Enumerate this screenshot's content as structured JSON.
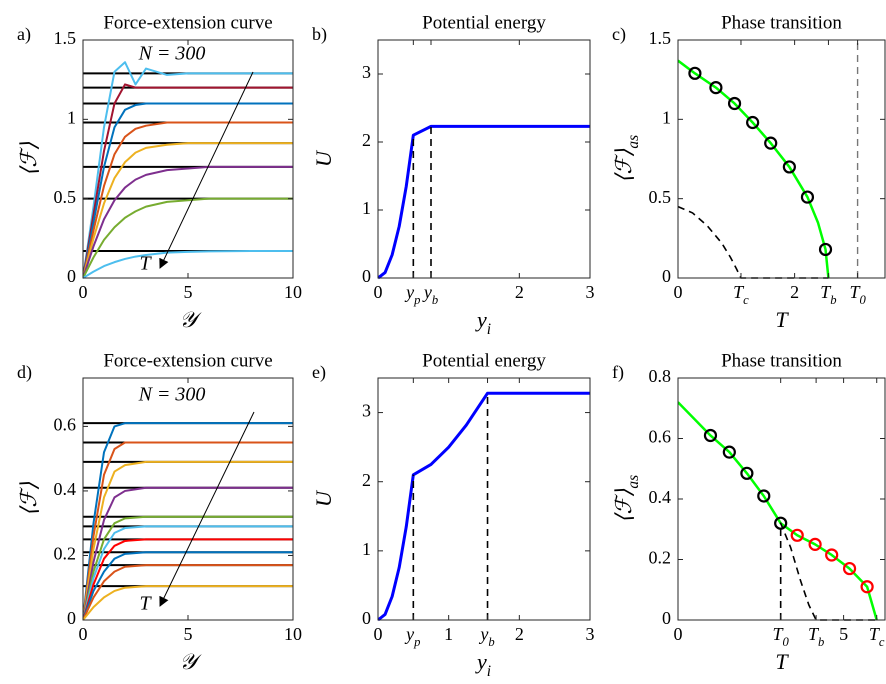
{
  "chart_data": [
    {
      "type": "line",
      "panel_label": "a)",
      "title": "Force-extension curve",
      "xlabel": "𝒴",
      "ylabel": "⟨ℱ⟩",
      "annotations": [
        "N = 300",
        "T"
      ],
      "xlim": [
        0,
        10
      ],
      "ylim": [
        0,
        1.5
      ],
      "xticks": [
        0,
        5,
        10
      ],
      "yticks": [
        0,
        0.5,
        1,
        1.5
      ],
      "hlines": [
        1.29,
        1.2,
        1.1,
        0.98,
        0.85,
        0.7,
        0.5,
        0.17
      ],
      "hline_color": "#000000",
      "x": [
        0,
        0.5,
        1,
        1.5,
        2,
        2.5,
        3,
        4,
        5,
        6,
        8,
        10
      ],
      "series": [
        {
          "color": "#4dbeee",
          "values": [
            0,
            0.45,
            0.95,
            1.3,
            1.36,
            1.22,
            1.32,
            1.28,
            1.29,
            1.29,
            1.29,
            1.29
          ]
        },
        {
          "color": "#a2142f",
          "values": [
            0,
            0.4,
            0.8,
            1.1,
            1.22,
            1.2,
            1.2,
            1.2,
            1.2,
            1.2,
            1.2,
            1.2
          ]
        },
        {
          "color": "#0072bd",
          "values": [
            0,
            0.35,
            0.7,
            0.95,
            1.06,
            1.09,
            1.1,
            1.1,
            1.1,
            1.1,
            1.1,
            1.1
          ]
        },
        {
          "color": "#d95319",
          "values": [
            0,
            0.3,
            0.58,
            0.78,
            0.89,
            0.94,
            0.96,
            0.98,
            0.98,
            0.98,
            0.98,
            0.98
          ]
        },
        {
          "color": "#edb120",
          "values": [
            0,
            0.25,
            0.47,
            0.63,
            0.73,
            0.79,
            0.82,
            0.84,
            0.85,
            0.85,
            0.85,
            0.85
          ]
        },
        {
          "color": "#7e2f8e",
          "values": [
            0,
            0.2,
            0.37,
            0.49,
            0.57,
            0.62,
            0.65,
            0.68,
            0.69,
            0.7,
            0.7,
            0.7
          ]
        },
        {
          "color": "#77ac30",
          "values": [
            0,
            0.13,
            0.24,
            0.32,
            0.38,
            0.42,
            0.45,
            0.48,
            0.49,
            0.5,
            0.5,
            0.5
          ]
        },
        {
          "color": "#4dbeee",
          "values": [
            0,
            0.04,
            0.075,
            0.1,
            0.12,
            0.135,
            0.145,
            0.16,
            0.165,
            0.168,
            0.17,
            0.17
          ]
        }
      ]
    },
    {
      "type": "line",
      "panel_label": "b)",
      "title": "Potential energy",
      "xlabel": "y_i",
      "ylabel": "U",
      "xlim": [
        0,
        3
      ],
      "ylim": [
        0,
        3.5
      ],
      "xticks": [
        0,
        {
          "value": 0.5,
          "label": "y_p"
        },
        {
          "value": 0.75,
          "label": "y_b"
        },
        2,
        3
      ],
      "yticks": [
        0,
        1,
        2,
        3
      ],
      "series": [
        {
          "color": "#0000ff",
          "width": 3,
          "x": [
            0,
            0.1,
            0.2,
            0.3,
            0.4,
            0.5,
            0.75,
            3
          ],
          "values": [
            0,
            0.08,
            0.34,
            0.76,
            1.35,
            2.1,
            2.23,
            2.23
          ]
        },
        {
          "color": "#000000",
          "dash": true,
          "x": [
            0.5,
            0.5
          ],
          "values": [
            0,
            2.1
          ]
        },
        {
          "color": "#000000",
          "dash": true,
          "x": [
            0.75,
            0.75
          ],
          "values": [
            0,
            2.23
          ]
        }
      ]
    },
    {
      "type": "line",
      "panel_label": "c)",
      "title": "Phase transition",
      "xlabel": "T",
      "ylabel": "⟨ℱ⟩_as",
      "xlim": [
        0,
        3.55
      ],
      "ylim": [
        0,
        1.5
      ],
      "xticks": [
        0,
        {
          "value": 1.08,
          "label": "T_c"
        },
        2,
        {
          "value": 2.58,
          "label": "T_b"
        },
        {
          "value": 3.08,
          "label": "T_0"
        }
      ],
      "yticks": [
        0,
        0.5,
        1,
        1.5
      ],
      "series": [
        {
          "color": "#00ff00",
          "width": 2.5,
          "x": [
            0,
            0.29,
            0.65,
            0.97,
            1.28,
            1.59,
            1.91,
            2.22,
            2.4,
            2.53,
            2.58
          ],
          "values": [
            1.37,
            1.29,
            1.2,
            1.1,
            0.98,
            0.85,
            0.7,
            0.51,
            0.35,
            0.18,
            0
          ]
        },
        {
          "color": "#000000",
          "marker": "circle",
          "x": [
            0.29,
            0.65,
            0.97,
            1.28,
            1.59,
            1.91,
            2.22,
            2.53
          ],
          "values": [
            1.29,
            1.2,
            1.1,
            0.98,
            0.85,
            0.7,
            0.51,
            0.18
          ]
        },
        {
          "color": "#000000",
          "dash": true,
          "x": [
            0,
            0.25,
            0.5,
            0.75,
            0.9,
            1.0,
            1.08,
            2.58
          ],
          "values": [
            0.45,
            0.41,
            0.33,
            0.22,
            0.13,
            0.06,
            0,
            0
          ]
        },
        {
          "color": "#777777",
          "dash": true,
          "x": [
            3.08,
            3.08
          ],
          "values": [
            0,
            1.5
          ]
        }
      ]
    },
    {
      "type": "line",
      "panel_label": "d)",
      "title": "Force-extension curve",
      "xlabel": "𝒴",
      "ylabel": "⟨ℱ⟩",
      "annotations": [
        "N = 300",
        "T"
      ],
      "xlim": [
        0,
        10
      ],
      "ylim": [
        0,
        0.75
      ],
      "xticks": [
        0,
        5,
        10
      ],
      "yticks": [
        0,
        0.2,
        0.4,
        0.6
      ],
      "hlines": [
        0.61,
        0.55,
        0.49,
        0.41,
        0.32,
        0.29,
        0.25,
        0.21,
        0.17,
        0.105
      ],
      "hline_color": "#000000",
      "x": [
        0,
        0.5,
        1,
        1.5,
        2,
        3,
        4,
        6,
        10
      ],
      "series": [
        {
          "color": "#0072bd",
          "values": [
            0,
            0.3,
            0.52,
            0.6,
            0.61,
            0.61,
            0.61,
            0.61,
            0.61
          ]
        },
        {
          "color": "#d95319",
          "values": [
            0,
            0.26,
            0.45,
            0.53,
            0.55,
            0.55,
            0.55,
            0.55,
            0.55
          ]
        },
        {
          "color": "#edb120",
          "values": [
            0,
            0.22,
            0.38,
            0.46,
            0.48,
            0.49,
            0.49,
            0.49,
            0.49
          ]
        },
        {
          "color": "#7e2f8e",
          "values": [
            0,
            0.18,
            0.31,
            0.38,
            0.4,
            0.41,
            0.41,
            0.41,
            0.41
          ]
        },
        {
          "color": "#77ac30",
          "values": [
            0,
            0.15,
            0.25,
            0.3,
            0.315,
            0.32,
            0.32,
            0.32,
            0.32
          ]
        },
        {
          "color": "#4dbeee",
          "values": [
            0,
            0.13,
            0.22,
            0.27,
            0.285,
            0.29,
            0.29,
            0.29,
            0.29
          ]
        },
        {
          "color": "#ff0000",
          "values": [
            0,
            0.11,
            0.19,
            0.23,
            0.245,
            0.25,
            0.25,
            0.25,
            0.25
          ]
        },
        {
          "color": "#0072bd",
          "values": [
            0,
            0.09,
            0.15,
            0.19,
            0.205,
            0.21,
            0.21,
            0.21,
            0.21
          ]
        },
        {
          "color": "#d95319",
          "values": [
            0,
            0.07,
            0.12,
            0.15,
            0.165,
            0.17,
            0.17,
            0.17,
            0.17
          ]
        },
        {
          "color": "#edb120",
          "values": [
            0,
            0.04,
            0.07,
            0.09,
            0.1,
            0.105,
            0.105,
            0.105,
            0.105
          ]
        }
      ]
    },
    {
      "type": "line",
      "panel_label": "e)",
      "title": "Potential energy",
      "xlabel": "y_i",
      "ylabel": "U",
      "xlim": [
        0,
        3
      ],
      "ylim": [
        0,
        3.5
      ],
      "xticks": [
        0,
        {
          "value": 0.5,
          "label": "y_p"
        },
        1,
        {
          "value": 1.55,
          "label": "y_b"
        },
        2,
        3
      ],
      "yticks": [
        0,
        1,
        2,
        3
      ],
      "series": [
        {
          "color": "#0000ff",
          "width": 3,
          "x": [
            0,
            0.1,
            0.2,
            0.3,
            0.4,
            0.5,
            0.75,
            1,
            1.25,
            1.55,
            3
          ],
          "values": [
            0,
            0.08,
            0.34,
            0.76,
            1.35,
            2.1,
            2.25,
            2.5,
            2.82,
            3.28,
            3.28
          ]
        },
        {
          "color": "#000000",
          "dash": true,
          "x": [
            0.5,
            0.5
          ],
          "values": [
            0,
            2.1
          ]
        },
        {
          "color": "#000000",
          "dash": true,
          "x": [
            1.55,
            1.55
          ],
          "values": [
            0,
            3.28
          ]
        }
      ]
    },
    {
      "type": "line",
      "panel_label": "f)",
      "title": "Phase transition",
      "xlabel": "T",
      "ylabel": "⟨ℱ⟩_as",
      "xlim": [
        0,
        6.25
      ],
      "ylim": [
        0,
        0.8
      ],
      "xticks": [
        0,
        {
          "value": 3.1,
          "label": "T_0"
        },
        {
          "value": 4.17,
          "label": "T_b"
        },
        5,
        {
          "value": 6.0,
          "label": "T_c"
        }
      ],
      "yticks": [
        0,
        0.2,
        0.4,
        0.6,
        0.8
      ],
      "series": [
        {
          "color": "#00ff00",
          "width": 2.5,
          "x": [
            0,
            0.98,
            1.55,
            2.08,
            2.59,
            3.1,
            3.6,
            4.14,
            4.64,
            5.18,
            5.71,
            6.0
          ],
          "values": [
            0.72,
            0.61,
            0.555,
            0.485,
            0.41,
            0.32,
            0.28,
            0.25,
            0.215,
            0.17,
            0.11,
            0
          ]
        },
        {
          "color": "#000000",
          "marker": "circle",
          "x": [
            0.98,
            1.55,
            2.08,
            2.59,
            3.1
          ],
          "values": [
            0.61,
            0.555,
            0.485,
            0.41,
            0.32
          ]
        },
        {
          "color": "#ff0000",
          "marker": "circle",
          "x": [
            3.6,
            4.14,
            4.64,
            5.18,
            5.71
          ],
          "values": [
            0.28,
            0.25,
            0.215,
            0.17,
            0.11
          ]
        },
        {
          "color": "#000000",
          "dash": true,
          "x": [
            3.1,
            3.1,
            3.4,
            3.7,
            3.95,
            4.17,
            6.0
          ],
          "values": [
            0,
            0.32,
            0.24,
            0.13,
            0.05,
            0,
            0
          ]
        }
      ]
    }
  ]
}
